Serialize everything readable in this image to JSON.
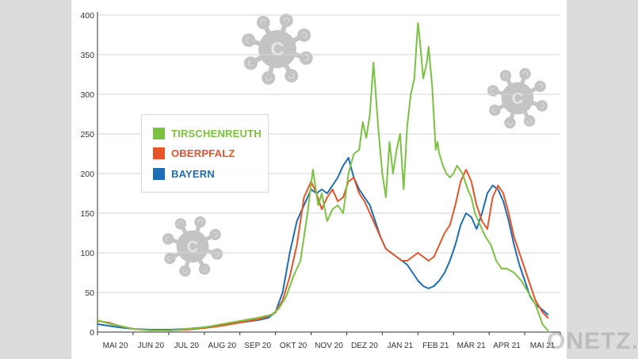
{
  "chart_data": {
    "type": "line",
    "title": "",
    "xlabel": "",
    "ylabel": "",
    "ylim": [
      0,
      400
    ],
    "yticks": [
      0,
      50,
      100,
      150,
      200,
      250,
      300,
      350,
      400
    ],
    "xlim": [
      0,
      13
    ],
    "month_labels": [
      "MAI 20",
      "JUN 20",
      "JUL 20",
      "AUG 20",
      "SEP 20",
      "OKT 20",
      "NOV 20",
      "DEZ 20",
      "JAN 21",
      "FEB 21",
      "MÄR 21",
      "APR 21",
      "MAI 21"
    ],
    "grid": "horizontal",
    "legend_position": "upper-left",
    "series": [
      {
        "name": "TIRSCHENREUTH",
        "color": "#7cc242",
        "x": [
          0,
          0.3,
          0.6,
          1,
          1.5,
          2,
          2.5,
          3,
          3.5,
          4,
          4.5,
          4.9,
          5.1,
          5.3,
          5.5,
          5.7,
          5.9,
          6.05,
          6.2,
          6.3,
          6.45,
          6.6,
          6.75,
          6.9,
          7.05,
          7.2,
          7.35,
          7.45,
          7.55,
          7.65,
          7.75,
          7.85,
          7.9,
          8.0,
          8.1,
          8.2,
          8.3,
          8.4,
          8.5,
          8.6,
          8.7,
          8.8,
          8.9,
          9.0,
          9.05,
          9.15,
          9.25,
          9.3,
          9.4,
          9.5,
          9.55,
          9.6,
          9.7,
          9.8,
          9.9,
          10.0,
          10.1,
          10.25,
          10.4,
          10.5,
          10.6,
          10.75,
          10.9,
          11.05,
          11.2,
          11.35,
          11.5,
          11.7,
          11.9,
          12.1,
          12.3,
          12.5,
          12.65
        ],
        "values": [
          15,
          11,
          8,
          4,
          2,
          2,
          4,
          6,
          10,
          14,
          18,
          22,
          30,
          45,
          70,
          90,
          150,
          205,
          160,
          175,
          140,
          155,
          160,
          150,
          200,
          225,
          230,
          265,
          245,
          275,
          340,
          280,
          250,
          200,
          170,
          240,
          200,
          230,
          250,
          180,
          260,
          300,
          320,
          390,
          370,
          320,
          340,
          360,
          310,
          230,
          240,
          225,
          210,
          200,
          195,
          200,
          210,
          200,
          180,
          170,
          150,
          135,
          120,
          110,
          90,
          80,
          80,
          75,
          65,
          50,
          35,
          10,
          2
        ]
      },
      {
        "name": "OBERPFALZ",
        "color": "#e8542a",
        "x": [
          0,
          0.3,
          0.6,
          1,
          1.5,
          2,
          2.5,
          3,
          3.5,
          4,
          4.5,
          4.8,
          5.0,
          5.2,
          5.4,
          5.6,
          5.8,
          6.0,
          6.15,
          6.3,
          6.45,
          6.6,
          6.75,
          6.9,
          7.05,
          7.2,
          7.35,
          7.5,
          7.65,
          7.8,
          7.95,
          8.1,
          8.25,
          8.4,
          8.55,
          8.7,
          8.85,
          9.0,
          9.15,
          9.3,
          9.45,
          9.6,
          9.75,
          9.9,
          10.05,
          10.2,
          10.35,
          10.5,
          10.65,
          10.8,
          10.95,
          11.1,
          11.25,
          11.4,
          11.55,
          11.7,
          11.85,
          12.0,
          12.15,
          12.3,
          12.5,
          12.65
        ],
        "values": [
          14,
          12,
          8,
          4,
          2,
          2,
          3,
          5,
          8,
          12,
          16,
          20,
          25,
          40,
          70,
          110,
          170,
          190,
          175,
          155,
          170,
          180,
          165,
          170,
          190,
          195,
          175,
          165,
          150,
          135,
          120,
          105,
          100,
          95,
          90,
          90,
          95,
          100,
          95,
          90,
          95,
          110,
          125,
          135,
          160,
          190,
          205,
          190,
          160,
          140,
          130,
          170,
          185,
          175,
          150,
          120,
          100,
          80,
          60,
          40,
          25,
          18
        ]
      },
      {
        "name": "BAYERN",
        "color": "#1d6db5",
        "x": [
          0,
          0.3,
          0.6,
          1,
          1.5,
          2,
          2.5,
          3,
          3.5,
          4,
          4.5,
          4.8,
          5.0,
          5.2,
          5.4,
          5.6,
          5.8,
          6.0,
          6.15,
          6.3,
          6.45,
          6.6,
          6.75,
          6.9,
          7.05,
          7.2,
          7.35,
          7.5,
          7.65,
          7.8,
          7.95,
          8.1,
          8.25,
          8.4,
          8.55,
          8.7,
          8.85,
          9.0,
          9.15,
          9.3,
          9.45,
          9.6,
          9.75,
          9.9,
          10.05,
          10.2,
          10.35,
          10.5,
          10.65,
          10.8,
          10.95,
          11.1,
          11.25,
          11.4,
          11.55,
          11.7,
          11.85,
          12.0,
          12.15,
          12.3,
          12.5,
          12.65
        ],
        "values": [
          10,
          8,
          6,
          4,
          3,
          3,
          4,
          6,
          9,
          12,
          15,
          18,
          25,
          50,
          100,
          140,
          160,
          180,
          175,
          180,
          175,
          185,
          195,
          210,
          220,
          195,
          180,
          170,
          160,
          140,
          120,
          105,
          100,
          95,
          90,
          85,
          75,
          65,
          58,
          55,
          58,
          65,
          75,
          90,
          110,
          135,
          150,
          145,
          130,
          150,
          175,
          185,
          180,
          165,
          140,
          110,
          85,
          65,
          45,
          35,
          28,
          22
        ]
      }
    ]
  },
  "watermark": "ONETZ.de",
  "icons": [
    "virus-icon",
    "virus-icon",
    "virus-icon"
  ]
}
